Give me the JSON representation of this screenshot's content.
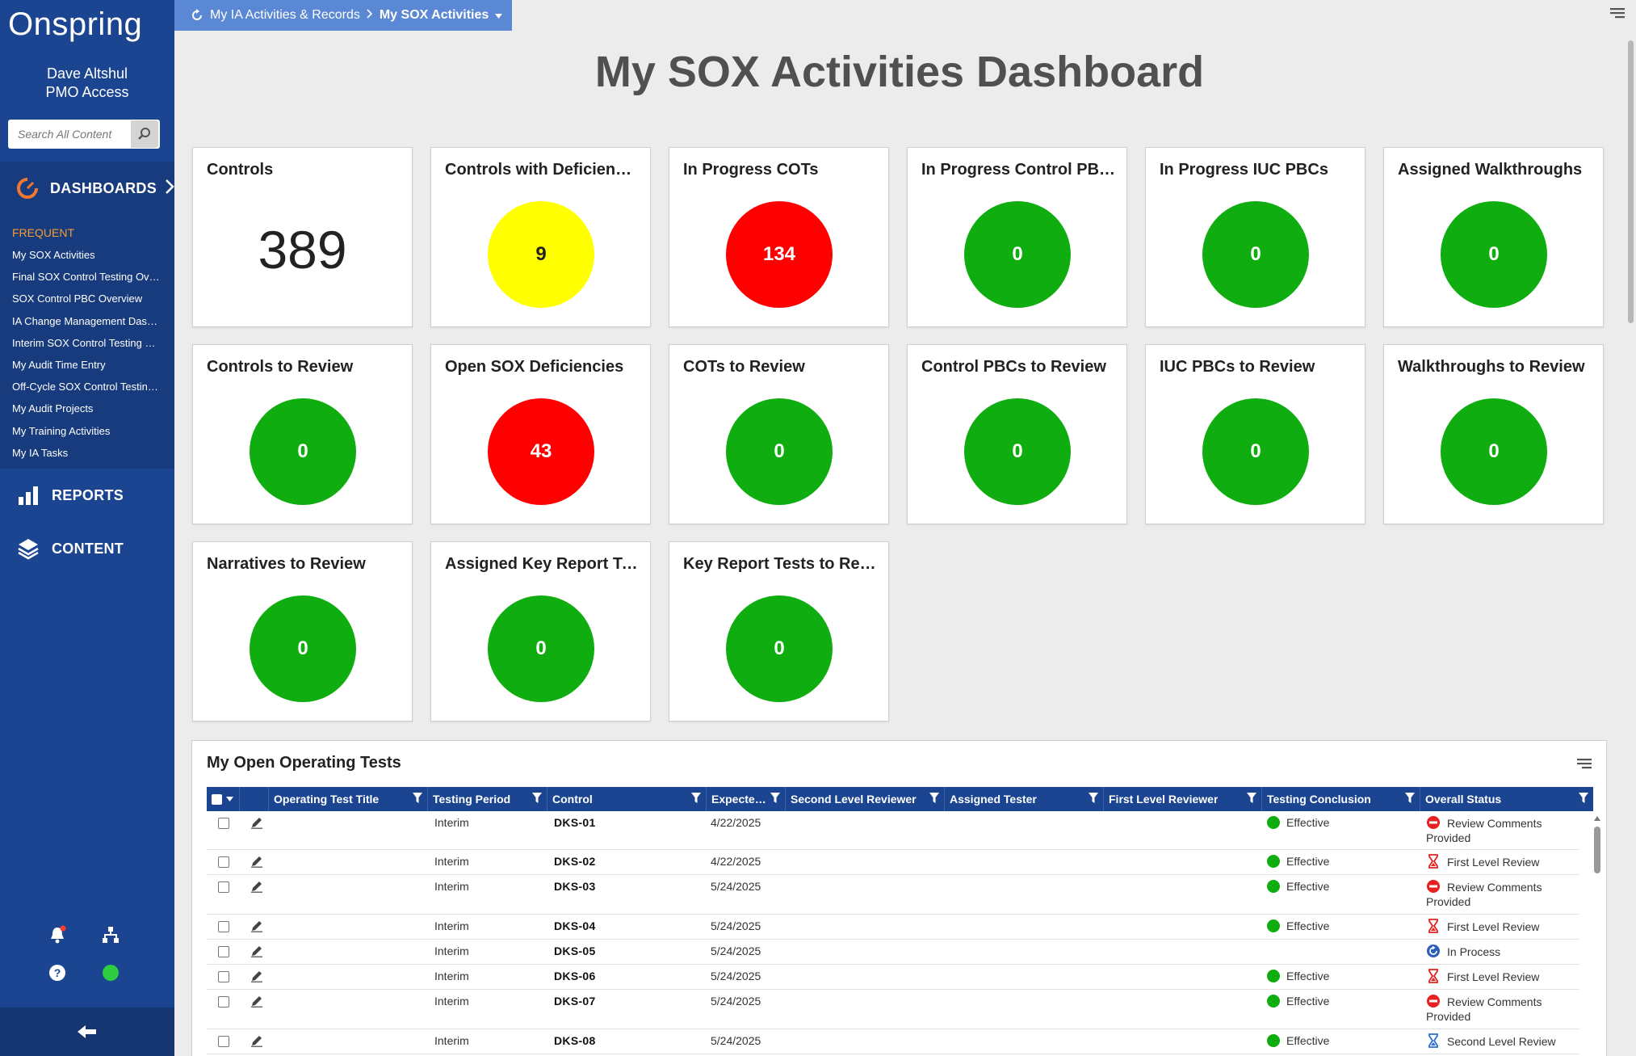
{
  "app": {
    "brand": "Onspring"
  },
  "user": {
    "name": "Dave Altshul",
    "role": "PMO Access"
  },
  "search": {
    "placeholder": "Search All Content"
  },
  "nav": {
    "dashboards_label": "DASHBOARDS",
    "frequent_label": "FREQUENT",
    "frequent_items": [
      "My SOX Activities",
      "Final SOX Control Testing Overview",
      "SOX Control PBC Overview",
      "IA Change Management Dashboard",
      "Interim SOX Control Testing Overview",
      "My Audit Time Entry",
      "Off-Cycle SOX Control Testing Overview",
      "My Audit Projects",
      "My Training Activities",
      "My IA Tasks"
    ],
    "reports_label": "REPORTS",
    "content_label": "CONTENT"
  },
  "breadcrumb": {
    "parent": "My IA Activities & Records",
    "current": "My SOX Activities"
  },
  "page": {
    "title": "My SOX Activities Dashboard"
  },
  "colors": {
    "green": "#0fad0f",
    "red": "#ff0000",
    "yellow": "#ffff00",
    "navy": "#1c4591"
  },
  "tiles": [
    {
      "title": "Controls",
      "value": "389",
      "style": "number"
    },
    {
      "title": "Controls with Deficiencies",
      "value": "9",
      "style": "yellow"
    },
    {
      "title": "In Progress COTs",
      "value": "134",
      "style": "red"
    },
    {
      "title": "In Progress Control PBCs",
      "value": "0",
      "style": "green"
    },
    {
      "title": "In Progress IUC PBCs",
      "value": "0",
      "style": "green"
    },
    {
      "title": "Assigned Walkthroughs",
      "value": "0",
      "style": "green"
    },
    {
      "title": "Controls to Review",
      "value": "0",
      "style": "green"
    },
    {
      "title": "Open SOX Deficiencies",
      "value": "43",
      "style": "red"
    },
    {
      "title": "COTs to Review",
      "value": "0",
      "style": "green"
    },
    {
      "title": "Control PBCs to Review",
      "value": "0",
      "style": "green"
    },
    {
      "title": "IUC PBCs to Review",
      "value": "0",
      "style": "green"
    },
    {
      "title": "Walkthroughs to Review",
      "value": "0",
      "style": "green"
    },
    {
      "title": "Narratives to Review",
      "value": "0",
      "style": "green"
    },
    {
      "title": "Assigned Key Report Tests",
      "value": "0",
      "style": "green"
    },
    {
      "title": "Key Report Tests to Review",
      "value": "0",
      "style": "green"
    }
  ],
  "grid": {
    "title": "My Open Operating Tests",
    "columns": [
      "Operating Test Title",
      "Testing Period",
      "Control",
      "Expected Completion Date",
      "Second Level Reviewer",
      "Assigned Tester",
      "First Level Reviewer",
      "Testing Conclusion",
      "Overall Status"
    ],
    "rows": [
      {
        "period": "Interim",
        "control": "DKS-01",
        "date": "4/22/2025",
        "conclusion": "Effective",
        "status": "Review Comments Provided",
        "status_icon": "no-entry-icon"
      },
      {
        "period": "Interim",
        "control": "DKS-02",
        "date": "4/22/2025",
        "conclusion": "Effective",
        "status": "First Level Review",
        "status_icon": "hourglass-red-icon"
      },
      {
        "period": "Interim",
        "control": "DKS-03",
        "date": "5/24/2025",
        "conclusion": "Effective",
        "status": "Review Comments Provided",
        "status_icon": "no-entry-icon"
      },
      {
        "period": "Interim",
        "control": "DKS-04",
        "date": "5/24/2025",
        "conclusion": "Effective",
        "status": "First Level Review",
        "status_icon": "hourglass-red-icon"
      },
      {
        "period": "Interim",
        "control": "DKS-05",
        "date": "5/24/2025",
        "conclusion": "",
        "status": "In Process",
        "status_icon": "refresh-icon"
      },
      {
        "period": "Interim",
        "control": "DKS-06",
        "date": "5/24/2025",
        "conclusion": "Effective",
        "status": "First Level Review",
        "status_icon": "hourglass-red-icon"
      },
      {
        "period": "Interim",
        "control": "DKS-07",
        "date": "5/24/2025",
        "conclusion": "Effective",
        "status": "Review Comments Provided",
        "status_icon": "no-entry-icon"
      },
      {
        "period": "Interim",
        "control": "DKS-08",
        "date": "5/24/2025",
        "conclusion": "Effective",
        "status": "Second Level Review",
        "status_icon": "hourglass-blue-icon"
      }
    ]
  }
}
